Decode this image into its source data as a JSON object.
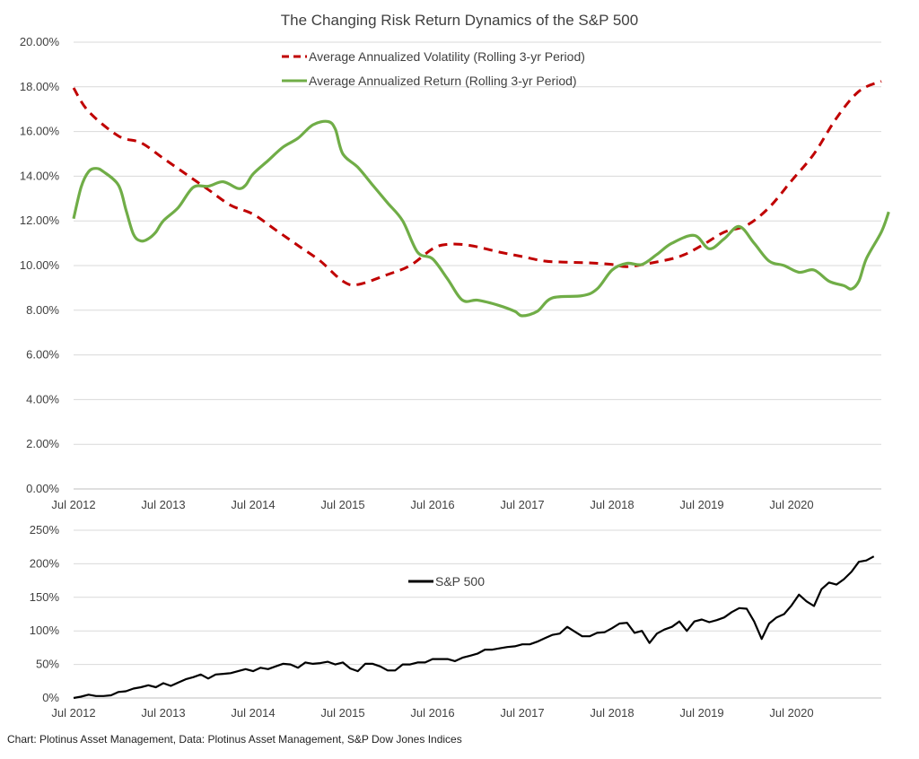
{
  "source_note": "Chart: Plotinus Asset Management, Data: Plotinus Asset Management, S&P Dow Jones Indices",
  "colors": {
    "volatility": "#c00000",
    "return": "#70ad47",
    "sp500": "#000000",
    "grid": "#d9d9d9",
    "text": "#404040"
  },
  "chart_data": [
    {
      "type": "line",
      "title": "The Changing Risk Return Dynamics of the S&P 500",
      "x_unit": "date (YYYY-MM)",
      "x_ticks": [
        "Jul 2012",
        "Jul 2013",
        "Jul 2014",
        "Jul 2015",
        "Jul 2016",
        "Jul 2017",
        "Jul 2018",
        "Jul 2019",
        "Jul 2020"
      ],
      "xlim": [
        "2012-07",
        "2021-07"
      ],
      "y_ticks": [
        "0.00%",
        "2.00%",
        "4.00%",
        "6.00%",
        "8.00%",
        "10.00%",
        "12.00%",
        "14.00%",
        "16.00%",
        "18.00%",
        "20.00%"
      ],
      "ylim": [
        0,
        20
      ],
      "grid": true,
      "legend_position": "top-center",
      "series": [
        {
          "name": "Average Annualized Volatility (Rolling 3-yr Period)",
          "style": "dashed",
          "color": "#c00000",
          "points": [
            [
              "2012-07",
              17.95
            ],
            [
              "2012-09",
              16.9
            ],
            [
              "2013-01",
              15.8
            ],
            [
              "2013-04",
              15.5
            ],
            [
              "2013-07",
              14.8
            ],
            [
              "2013-10",
              14.1
            ],
            [
              "2014-01",
              13.4
            ],
            [
              "2014-04",
              12.7
            ],
            [
              "2014-07",
              12.3
            ],
            [
              "2014-10",
              11.6
            ],
            [
              "2015-01",
              10.9
            ],
            [
              "2015-04",
              10.2
            ],
            [
              "2015-07",
              9.3
            ],
            [
              "2015-09",
              9.15
            ],
            [
              "2016-01",
              9.6
            ],
            [
              "2016-04",
              10.0
            ],
            [
              "2016-07",
              10.75
            ],
            [
              "2016-09",
              10.95
            ],
            [
              "2016-12",
              10.9
            ],
            [
              "2017-04",
              10.6
            ],
            [
              "2017-07",
              10.4
            ],
            [
              "2017-10",
              10.2
            ],
            [
              "2018-01",
              10.15
            ],
            [
              "2018-04",
              10.12
            ],
            [
              "2018-07",
              10.05
            ],
            [
              "2018-09",
              9.95
            ],
            [
              "2018-12",
              10.1
            ],
            [
              "2019-04",
              10.4
            ],
            [
              "2019-07",
              10.9
            ],
            [
              "2019-10",
              11.5
            ],
            [
              "2020-01",
              11.8
            ],
            [
              "2020-04",
              12.6
            ],
            [
              "2020-07",
              13.8
            ],
            [
              "2020-10",
              15.0
            ],
            [
              "2021-01",
              16.6
            ],
            [
              "2021-04",
              17.8
            ],
            [
              "2021-07",
              18.25
            ]
          ]
        },
        {
          "name": "Average Annualized Return (Rolling 3-yr Period)",
          "style": "solid",
          "color": "#70ad47",
          "points": [
            [
              "2012-07",
              12.1
            ],
            [
              "2012-08",
              13.5
            ],
            [
              "2012-09",
              14.2
            ],
            [
              "2012-10",
              14.35
            ],
            [
              "2012-11",
              14.2
            ],
            [
              "2013-01",
              13.6
            ],
            [
              "2013-02",
              12.5
            ],
            [
              "2013-03",
              11.4
            ],
            [
              "2013-04",
              11.1
            ],
            [
              "2013-05",
              11.2
            ],
            [
              "2013-06",
              11.5
            ],
            [
              "2013-07",
              12.0
            ],
            [
              "2013-09",
              12.6
            ],
            [
              "2013-11",
              13.5
            ],
            [
              "2014-01",
              13.55
            ],
            [
              "2014-03",
              13.75
            ],
            [
              "2014-05",
              13.45
            ],
            [
              "2014-06",
              13.6
            ],
            [
              "2014-07",
              14.1
            ],
            [
              "2014-09",
              14.7
            ],
            [
              "2014-11",
              15.3
            ],
            [
              "2015-01",
              15.7
            ],
            [
              "2015-03",
              16.3
            ],
            [
              "2015-05",
              16.45
            ],
            [
              "2015-06",
              16.1
            ],
            [
              "2015-07",
              15.0
            ],
            [
              "2015-09",
              14.4
            ],
            [
              "2015-11",
              13.6
            ],
            [
              "2016-01",
              12.8
            ],
            [
              "2016-03",
              12.0
            ],
            [
              "2016-05",
              10.6
            ],
            [
              "2016-07",
              10.3
            ],
            [
              "2016-09",
              9.4
            ],
            [
              "2016-11",
              8.45
            ],
            [
              "2017-01",
              8.45
            ],
            [
              "2017-04",
              8.2
            ],
            [
              "2017-06",
              7.95
            ],
            [
              "2017-07",
              7.75
            ],
            [
              "2017-09",
              7.95
            ],
            [
              "2017-11",
              8.55
            ],
            [
              "2018-03",
              8.65
            ],
            [
              "2018-05",
              8.95
            ],
            [
              "2018-07",
              9.8
            ],
            [
              "2018-09",
              10.1
            ],
            [
              "2018-11",
              10.05
            ],
            [
              "2019-01",
              10.5
            ],
            [
              "2019-03",
              11.0
            ],
            [
              "2019-06",
              11.35
            ],
            [
              "2019-08",
              10.75
            ],
            [
              "2019-10",
              11.2
            ],
            [
              "2019-12",
              11.75
            ],
            [
              "2020-02",
              11.0
            ],
            [
              "2020-04",
              10.2
            ],
            [
              "2020-06",
              10.0
            ],
            [
              "2020-08",
              9.7
            ],
            [
              "2020-10",
              9.8
            ],
            [
              "2020-12",
              9.3
            ],
            [
              "2021-02",
              9.1
            ],
            [
              "2021-03",
              8.95
            ],
            [
              "2021-04",
              9.3
            ],
            [
              "2021-05",
              10.3
            ],
            [
              "2021-07",
              11.5
            ],
            [
              "2021-08",
              12.4
            ]
          ]
        }
      ]
    },
    {
      "type": "line",
      "x_unit": "date (YYYY-MM)",
      "x_ticks": [
        "Jul 2012",
        "Jul 2013",
        "Jul 2014",
        "Jul 2015",
        "Jul 2016",
        "Jul 2017",
        "Jul 2018",
        "Jul 2019",
        "Jul 2020"
      ],
      "xlim": [
        "2012-07",
        "2021-07"
      ],
      "y_ticks": [
        "0%",
        "50%",
        "100%",
        "150%",
        "200%",
        "250%"
      ],
      "ylim": [
        0,
        250
      ],
      "grid": true,
      "legend_position": "upper-center",
      "series": [
        {
          "name": "S&P 500",
          "style": "solid",
          "color": "#000000",
          "points": [
            [
              "2012-07",
              0
            ],
            [
              "2012-08",
              2
            ],
            [
              "2012-09",
              5
            ],
            [
              "2012-10",
              3
            ],
            [
              "2012-11",
              3
            ],
            [
              "2012-12",
              4
            ],
            [
              "2013-01",
              9
            ],
            [
              "2013-02",
              10
            ],
            [
              "2013-03",
              14
            ],
            [
              "2013-04",
              16
            ],
            [
              "2013-05",
              19
            ],
            [
              "2013-06",
              16
            ],
            [
              "2013-07",
              22
            ],
            [
              "2013-08",
              18
            ],
            [
              "2013-09",
              23
            ],
            [
              "2013-10",
              28
            ],
            [
              "2013-11",
              31
            ],
            [
              "2013-12",
              35
            ],
            [
              "2014-01",
              29
            ],
            [
              "2014-02",
              35
            ],
            [
              "2014-03",
              36
            ],
            [
              "2014-04",
              37
            ],
            [
              "2014-05",
              40
            ],
            [
              "2014-06",
              43
            ],
            [
              "2014-07",
              40
            ],
            [
              "2014-08",
              45
            ],
            [
              "2014-09",
              43
            ],
            [
              "2014-10",
              47
            ],
            [
              "2014-11",
              51
            ],
            [
              "2014-12",
              50
            ],
            [
              "2015-01",
              45
            ],
            [
              "2015-02",
              53
            ],
            [
              "2015-03",
              51
            ],
            [
              "2015-04",
              52
            ],
            [
              "2015-05",
              54
            ],
            [
              "2015-06",
              50
            ],
            [
              "2015-07",
              53
            ],
            [
              "2015-08",
              44
            ],
            [
              "2015-09",
              40
            ],
            [
              "2015-10",
              51
            ],
            [
              "2015-11",
              51
            ],
            [
              "2015-12",
              47
            ],
            [
              "2016-01",
              41
            ],
            [
              "2016-02",
              41
            ],
            [
              "2016-03",
              50
            ],
            [
              "2016-04",
              50
            ],
            [
              "2016-05",
              53
            ],
            [
              "2016-06",
              53
            ],
            [
              "2016-07",
              58
            ],
            [
              "2016-08",
              58
            ],
            [
              "2016-09",
              58
            ],
            [
              "2016-10",
              55
            ],
            [
              "2016-11",
              60
            ],
            [
              "2016-12",
              63
            ],
            [
              "2017-01",
              66
            ],
            [
              "2017-02",
              72
            ],
            [
              "2017-03",
              72
            ],
            [
              "2017-04",
              74
            ],
            [
              "2017-05",
              76
            ],
            [
              "2017-06",
              77
            ],
            [
              "2017-07",
              80
            ],
            [
              "2017-08",
              80
            ],
            [
              "2017-09",
              84
            ],
            [
              "2017-10",
              89
            ],
            [
              "2017-11",
              94
            ],
            [
              "2017-12",
              96
            ],
            [
              "2018-01",
              106
            ],
            [
              "2018-02",
              99
            ],
            [
              "2018-03",
              92
            ],
            [
              "2018-04",
              92
            ],
            [
              "2018-05",
              97
            ],
            [
              "2018-06",
              98
            ],
            [
              "2018-07",
              104
            ],
            [
              "2018-08",
              111
            ],
            [
              "2018-09",
              112
            ],
            [
              "2018-10",
              97
            ],
            [
              "2018-11",
              100
            ],
            [
              "2018-12",
              82
            ],
            [
              "2019-01",
              96
            ],
            [
              "2019-02",
              102
            ],
            [
              "2019-03",
              106
            ],
            [
              "2019-04",
              114
            ],
            [
              "2019-05",
              100
            ],
            [
              "2019-06",
              114
            ],
            [
              "2019-07",
              117
            ],
            [
              "2019-08",
              113
            ],
            [
              "2019-09",
              116
            ],
            [
              "2019-10",
              120
            ],
            [
              "2019-11",
              128
            ],
            [
              "2019-12",
              134
            ],
            [
              "2020-01",
              133
            ],
            [
              "2020-02",
              114
            ],
            [
              "2020-03",
              88
            ],
            [
              "2020-04",
              111
            ],
            [
              "2020-05",
              120
            ],
            [
              "2020-06",
              125
            ],
            [
              "2020-07",
              138
            ],
            [
              "2020-08",
              154
            ],
            [
              "2020-09",
              144
            ],
            [
              "2020-10",
              137
            ],
            [
              "2020-11",
              162
            ],
            [
              "2020-12",
              172
            ],
            [
              "2021-01",
              169
            ],
            [
              "2021-02",
              177
            ],
            [
              "2021-03",
              188
            ],
            [
              "2021-04",
              203
            ],
            [
              "2021-05",
              205
            ],
            [
              "2021-06",
              211
            ]
          ]
        }
      ]
    }
  ]
}
